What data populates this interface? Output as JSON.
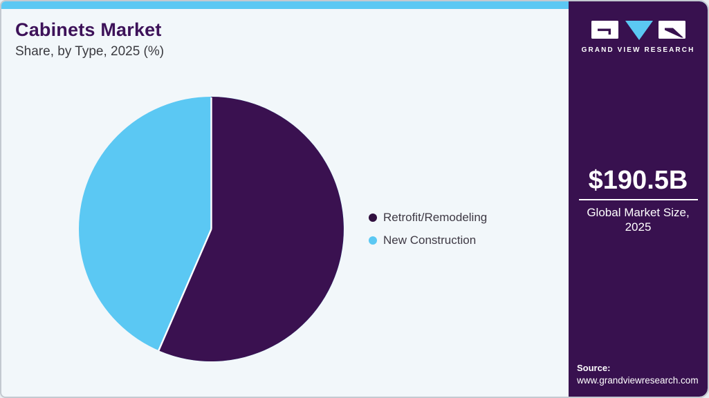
{
  "page": {
    "background": "#f2f7fa",
    "accent_blue": "#5bc8f3",
    "brand_purple": "#38114f"
  },
  "header": {
    "title": "Cabinets Market",
    "subtitle": "Share, by Type, 2025 (%)"
  },
  "chart_data": {
    "type": "pie",
    "title": "Cabinets Market Share, by Type, 2025 (%)",
    "categories": [
      "Retrofit/Remodeling",
      "New Construction"
    ],
    "values": [
      56.5,
      43.5
    ],
    "colors": [
      "#3a1150",
      "#5bc8f3"
    ],
    "start_angle_deg": 0,
    "direction": "clockwise",
    "divider_color": "#ffffff",
    "legend_position": "right"
  },
  "legend": {
    "items": [
      {
        "label": "Retrofit/Remodeling",
        "color": "#31103f"
      },
      {
        "label": "New Construction",
        "color": "#5bc8f3"
      }
    ]
  },
  "sidebar": {
    "logo_wordmark": "GRAND VIEW RESEARCH",
    "market_size_value": "$190.5B",
    "market_size_label_line1": "Global Market Size,",
    "market_size_label_line2": "2025",
    "source_label": "Source:",
    "source_url": "www.grandviewresearch.com"
  }
}
